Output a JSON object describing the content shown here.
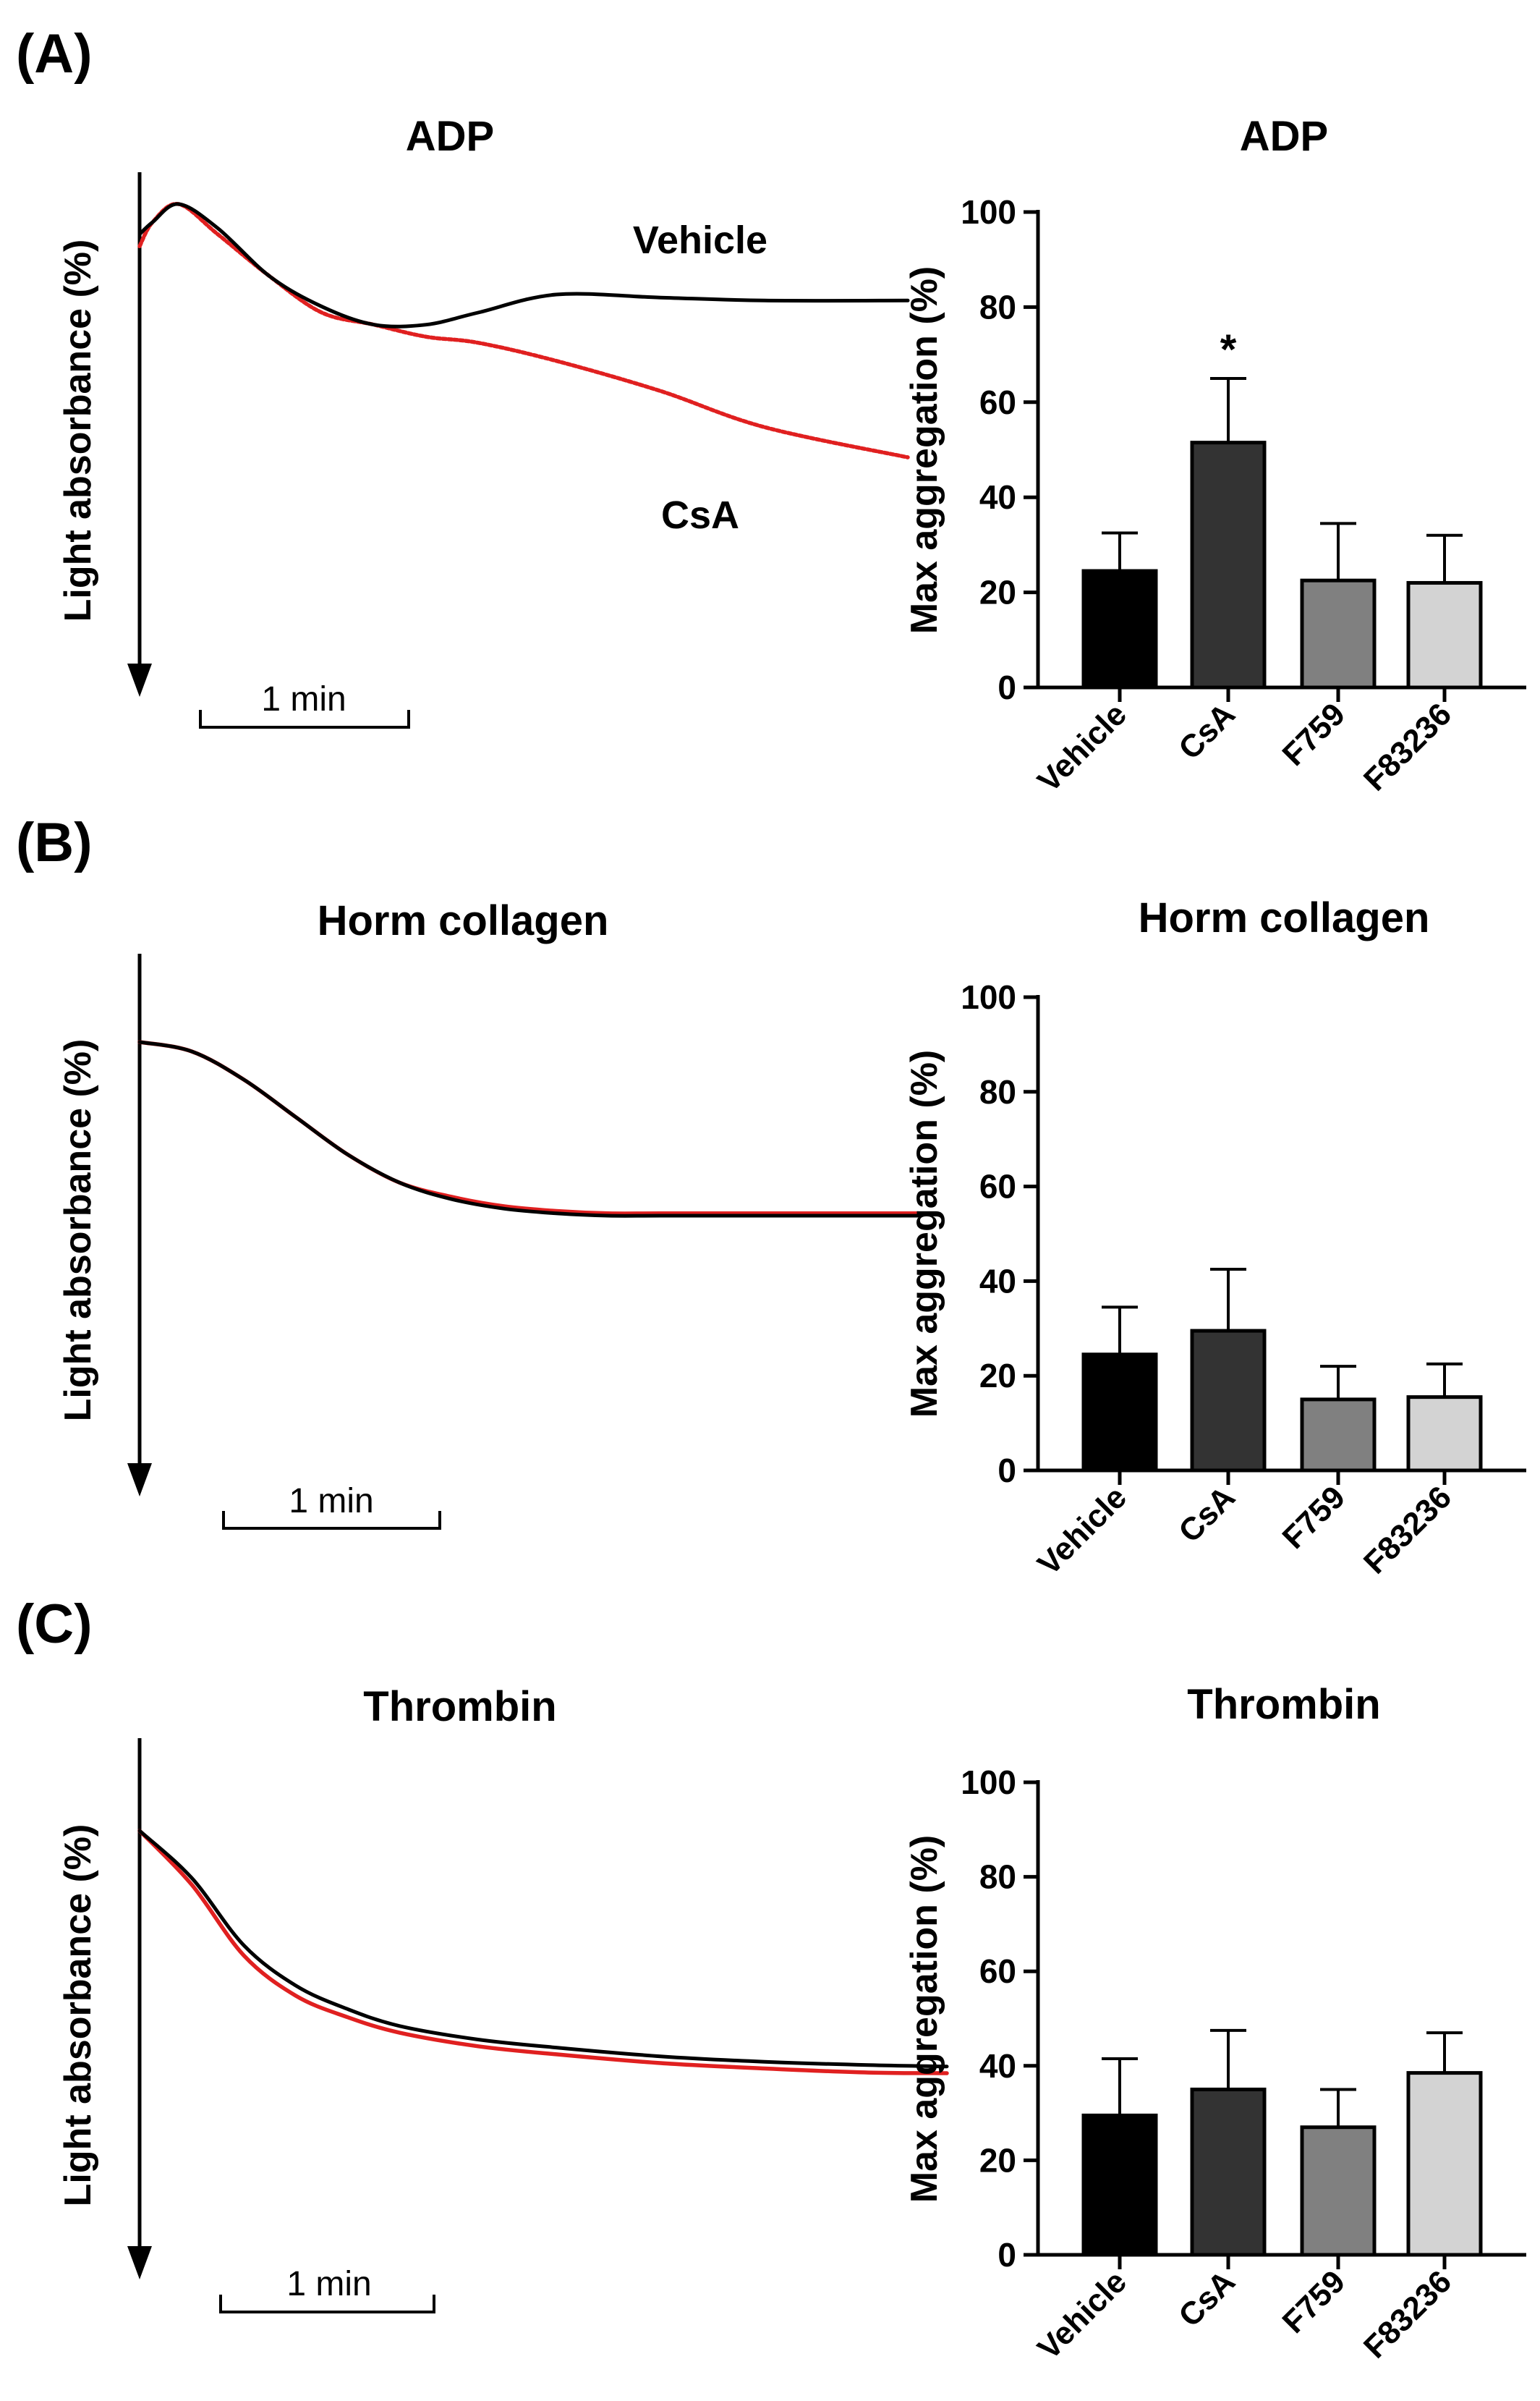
{
  "panels": [
    {
      "letter": "(A)",
      "trace": {
        "title": "ADP",
        "ylabel": "Light absorbance (%)",
        "scale_label": "1 min",
        "labels": {
          "vehicle": "Vehicle",
          "csa": "CsA"
        }
      },
      "bar": {
        "title": "ADP",
        "significance": "*"
      }
    },
    {
      "letter": "(B)",
      "trace": {
        "title": "Horm collagen",
        "ylabel": "Light absorbance (%)",
        "scale_label": "1 min",
        "labels": {
          "vehicle": "",
          "csa": ""
        }
      },
      "bar": {
        "title": "Horm collagen",
        "significance": ""
      }
    },
    {
      "letter": "(C)",
      "trace": {
        "title": "Thrombin",
        "ylabel": "Light absorbance (%)",
        "scale_label": "1 min",
        "labels": {
          "vehicle": "",
          "csa": ""
        }
      },
      "bar": {
        "title": "Thrombin",
        "significance": ""
      }
    }
  ],
  "colors": {
    "vehicle_trace": "#000000",
    "csa_trace": "#e02020",
    "bars": [
      "#000000",
      "#333333",
      "#808080",
      "#d3d3d3"
    ]
  },
  "chart_data": [
    {
      "type": "line",
      "title": "ADP",
      "xlabel": "1 min",
      "ylabel": "Light absorbance (%)",
      "x_unit": "min",
      "ylim": [
        0,
        100
      ],
      "series": [
        {
          "name": "Vehicle",
          "x": [
            0,
            0.05,
            0.15,
            0.3,
            0.5,
            0.7,
            0.9,
            1.1,
            1.3,
            1.6,
            2.0,
            2.4,
            2.95
          ],
          "y": [
            95,
            97,
            100,
            96,
            88,
            83,
            80,
            80,
            82,
            85,
            84.5,
            84,
            84
          ]
        },
        {
          "name": "CsA",
          "x": [
            0,
            0.05,
            0.15,
            0.3,
            0.5,
            0.7,
            0.9,
            1.1,
            1.3,
            1.6,
            2.0,
            2.4,
            2.95
          ],
          "y": [
            93,
            97,
            100,
            95,
            88,
            82,
            80,
            78,
            77,
            74,
            69,
            63,
            58
          ]
        }
      ]
    },
    {
      "type": "bar",
      "title": "ADP",
      "categories": [
        "Vehicle",
        "CsA",
        "F759",
        "F83236"
      ],
      "values": [
        24.5,
        51.5,
        22.5,
        22
      ],
      "errors": [
        8,
        13.5,
        12,
        10
      ],
      "ylabel": "Max aggregation (%)",
      "ylim": [
        0,
        100
      ],
      "yticks": [
        0,
        20,
        40,
        60,
        80,
        100
      ],
      "annotations": [
        {
          "category": "CsA",
          "text": "*"
        }
      ]
    },
    {
      "type": "line",
      "title": "Horm collagen",
      "xlabel": "1 min",
      "ylabel": "Light absorbance (%)",
      "x_unit": "min",
      "ylim": [
        0,
        100
      ],
      "series": [
        {
          "name": "Vehicle",
          "x": [
            0,
            0.2,
            0.4,
            0.6,
            0.8,
            1.0,
            1.2,
            1.4,
            1.6,
            1.8,
            2.0,
            2.4,
            3.0
          ],
          "y": [
            100,
            98,
            92,
            84,
            76,
            70,
            66.5,
            64.5,
            63.5,
            63,
            63,
            63,
            63
          ]
        },
        {
          "name": "CsA",
          "x": [
            0,
            0.2,
            0.4,
            0.6,
            0.8,
            1.0,
            1.2,
            1.4,
            1.6,
            1.8,
            2.0,
            2.4,
            3.0
          ],
          "y": [
            100,
            98,
            92,
            84,
            76,
            70,
            67,
            65,
            64,
            63.5,
            63.5,
            63.5,
            63.5
          ]
        }
      ]
    },
    {
      "type": "bar",
      "title": "Horm collagen",
      "categories": [
        "Vehicle",
        "CsA",
        "F759",
        "F83236"
      ],
      "values": [
        24.5,
        29.5,
        15,
        15.5
      ],
      "errors": [
        10,
        13,
        7,
        7
      ],
      "ylabel": "Max aggregation (%)",
      "ylim": [
        0,
        100
      ],
      "yticks": [
        0,
        20,
        40,
        60,
        80,
        100
      ]
    },
    {
      "type": "line",
      "title": "Thrombin",
      "xlabel": "1 min",
      "ylabel": "Light absorbance (%)",
      "x_unit": "min",
      "ylim": [
        0,
        100
      ],
      "series": [
        {
          "name": "Vehicle",
          "x": [
            0,
            0.2,
            0.4,
            0.6,
            0.8,
            1.0,
            1.3,
            1.6,
            2.0,
            2.4,
            2.8,
            3.1
          ],
          "y": [
            100,
            93,
            83,
            77,
            73.5,
            71,
            69,
            67.8,
            66.5,
            65.7,
            65.2,
            65
          ]
        },
        {
          "name": "CsA",
          "x": [
            0,
            0.2,
            0.4,
            0.6,
            0.8,
            1.0,
            1.3,
            1.6,
            2.0,
            2.4,
            2.8,
            3.1
          ],
          "y": [
            100,
            92,
            81.5,
            75.5,
            72.3,
            70,
            68,
            66.8,
            65.5,
            64.7,
            64.1,
            64
          ]
        }
      ]
    },
    {
      "type": "bar",
      "title": "Thrombin",
      "categories": [
        "Vehicle",
        "CsA",
        "F759",
        "F83236"
      ],
      "values": [
        29.5,
        35,
        27,
        38.5
      ],
      "errors": [
        12,
        12.5,
        8,
        8.5
      ],
      "ylabel": "Max aggregation (%)",
      "ylim": [
        0,
        100
      ],
      "yticks": [
        0,
        20,
        40,
        60,
        80,
        100
      ]
    }
  ]
}
